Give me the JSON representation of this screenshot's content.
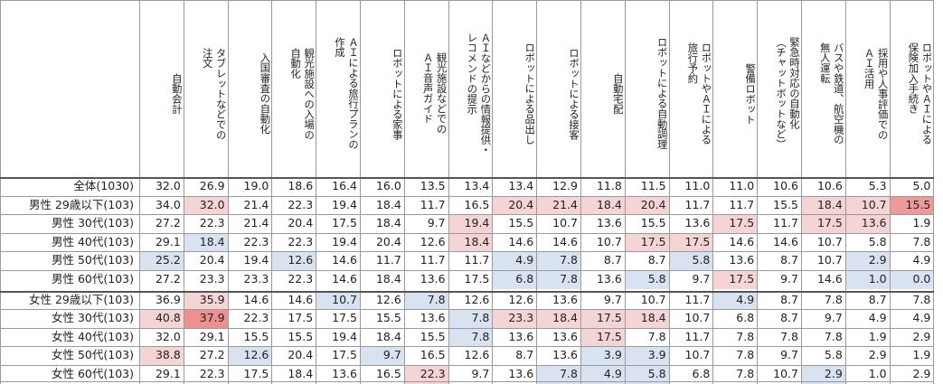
{
  "columns": [
    "自動会計",
    "タブレットなどでの\n注文",
    "入国審査の自動化",
    "観光施設への入場の\n自動化",
    "ＡＩによる旅行プランの\n作成",
    "ロボットによる家事",
    "観光施設などでの\nＡＩ音声ガイド",
    "ＡＩなどからの情報提供・\nレコメンドの提示",
    "ロボットによる品出し",
    "ロボットによる接客",
    "自動宅配",
    "ロボットによる自動調理",
    "ロボットやＡＩによる\n旅行予約",
    "警備ロボット",
    "緊急時対応の自動化\n（チャットボットなど）",
    "バスや鉄道、航空機の\n無人運転",
    "採用や人事評価での\nＡＩ活用",
    "ロボットやＡＩによる\n保険加入手続き"
  ],
  "rows": [
    {
      "label": "全体(1030)",
      "values": [
        "32.0",
        "26.9",
        "19.0",
        "18.6",
        "16.4",
        "16.0",
        "13.5",
        "13.4",
        "13.4",
        "12.9",
        "11.8",
        "11.5",
        "11.0",
        "11.0",
        "10.6",
        "10.6",
        "5.3",
        "5.0"
      ]
    },
    {
      "label": "男性 29歳以下(103)",
      "values": [
        "34.0",
        "32.0",
        "21.4",
        "22.3",
        "19.4",
        "18.4",
        "11.7",
        "16.5",
        "20.4",
        "21.4",
        "18.4",
        "20.4",
        "11.7",
        "11.7",
        "15.5",
        "18.4",
        "10.7",
        "15.5"
      ]
    },
    {
      "label": "男性 30代(103)",
      "values": [
        "27.2",
        "22.3",
        "21.4",
        "20.4",
        "17.5",
        "18.4",
        "9.7",
        "19.4",
        "15.5",
        "10.7",
        "13.6",
        "15.5",
        "13.6",
        "17.5",
        "11.7",
        "17.5",
        "13.6",
        "1.9"
      ]
    },
    {
      "label": "男性 40代(103)",
      "values": [
        "29.1",
        "18.4",
        "22.3",
        "22.3",
        "19.4",
        "20.4",
        "12.6",
        "18.4",
        "14.6",
        "14.6",
        "10.7",
        "17.5",
        "17.5",
        "14.6",
        "14.6",
        "10.7",
        "5.8",
        "7.8"
      ]
    },
    {
      "label": "男性 50代(103)",
      "values": [
        "25.2",
        "20.4",
        "19.4",
        "12.6",
        "14.6",
        "11.7",
        "11.7",
        "11.7",
        "4.9",
        "7.8",
        "8.7",
        "8.7",
        "5.8",
        "13.6",
        "8.7",
        "10.7",
        "2.9",
        "4.9"
      ]
    },
    {
      "label": "男性 60代(103)",
      "values": [
        "27.2",
        "23.3",
        "23.3",
        "22.3",
        "14.6",
        "18.4",
        "13.6",
        "17.5",
        "6.8",
        "7.8",
        "13.6",
        "5.8",
        "9.7",
        "17.5",
        "9.7",
        "14.6",
        "1.0",
        "0.0"
      ]
    },
    {
      "label": "女性 29歳以下(103)",
      "values": [
        "36.9",
        "35.9",
        "14.6",
        "14.6",
        "10.7",
        "12.6",
        "7.8",
        "12.6",
        "12.6",
        "13.6",
        "9.7",
        "10.7",
        "11.7",
        "4.9",
        "8.7",
        "7.8",
        "8.7",
        "7.8"
      ]
    },
    {
      "label": "女性 30代(103)",
      "values": [
        "40.8",
        "37.9",
        "22.3",
        "17.5",
        "17.5",
        "15.5",
        "13.6",
        "7.8",
        "23.3",
        "18.4",
        "17.5",
        "18.4",
        "10.7",
        "6.8",
        "8.7",
        "9.7",
        "4.9",
        "4.9"
      ]
    },
    {
      "label": "女性 40代(103)",
      "values": [
        "32.0",
        "29.1",
        "15.5",
        "15.5",
        "19.4",
        "18.4",
        "15.5",
        "7.8",
        "13.6",
        "13.6",
        "17.5",
        "7.8",
        "11.7",
        "7.8",
        "7.8",
        "7.8",
        "1.9",
        "2.9"
      ]
    },
    {
      "label": "女性 50代(103)",
      "values": [
        "38.8",
        "27.2",
        "12.6",
        "20.4",
        "17.5",
        "9.7",
        "16.5",
        "12.6",
        "8.7",
        "13.6",
        "3.9",
        "3.9",
        "10.7",
        "7.8",
        "9.7",
        "5.8",
        "2.9",
        "1.9"
      ]
    },
    {
      "label": "女性 60代(103)",
      "values": [
        "29.1",
        "22.3",
        "17.5",
        "18.4",
        "13.6",
        "16.5",
        "22.3",
        "9.7",
        "13.6",
        "7.8",
        "4.9",
        "5.8",
        "6.8",
        "7.8",
        "10.7",
        "2.9",
        "1.0",
        "2.9"
      ]
    }
  ],
  "highlights": {
    "1": {
      "1": "p1",
      "8": "p1",
      "9": "p1",
      "10": "p1",
      "11": "p1",
      "15": "p1",
      "16": "p1",
      "17": "p2"
    },
    "2": {
      "7": "p1",
      "13": "p1",
      "15": "p1",
      "16": "p1"
    },
    "3": {
      "1": "b1",
      "7": "p1",
      "11": "p1",
      "12": "p1"
    },
    "4": {
      "0": "b1",
      "3": "b1",
      "8": "b1",
      "9": "b1",
      "12": "b1",
      "16": "b1"
    },
    "5": {
      "8": "b1",
      "9": "b1",
      "11": "b1",
      "13": "p1",
      "16": "b1",
      "17": "b1"
    },
    "6": {
      "1": "p1",
      "4": "b1",
      "6": "b1",
      "13": "b1"
    },
    "7": {
      "0": "p1",
      "1": "p3",
      "7": "b1",
      "8": "p1",
      "9": "p1",
      "10": "p1",
      "11": "p1"
    },
    "8": {
      "7": "b1",
      "10": "p1"
    },
    "9": {
      "0": "p1",
      "2": "b1",
      "5": "b1",
      "10": "b1",
      "11": "b1"
    },
    "10": {
      "6": "p1",
      "9": "b1",
      "10": "b1",
      "11": "b1",
      "15": "b1"
    }
  },
  "colors": {
    "p1": "#f4d4d4",
    "p2": "#ee9a9a",
    "p3": "#ec9090",
    "b1": "#d9e2f0",
    "grid": "#9a9a9a"
  }
}
